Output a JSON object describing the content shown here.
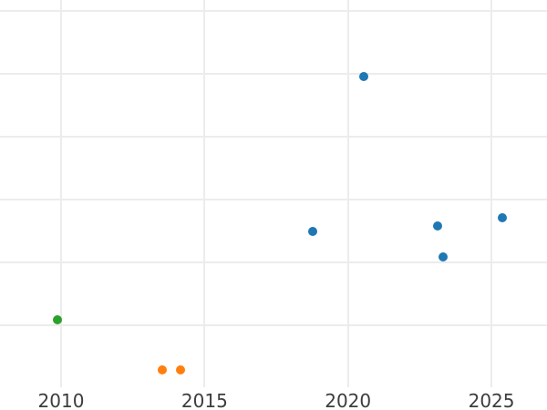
{
  "chart_data": {
    "type": "scatter",
    "title": "",
    "xlabel": "",
    "ylabel": "",
    "grid": true,
    "legend": false,
    "y_axis_labels_visible": false,
    "x_ticks": [
      {
        "value": 2010,
        "label": "2010"
      },
      {
        "value": 2015,
        "label": "2015"
      },
      {
        "value": 2020,
        "label": "2020"
      },
      {
        "value": 2025,
        "label": "2025"
      }
    ],
    "y_gridline_units": [
      0,
      1,
      2,
      3,
      4,
      5
    ],
    "series": [
      {
        "name": "blue-series",
        "color": "#1f77b4",
        "points": [
          {
            "x": 2018.78,
            "y": 1.5
          },
          {
            "x": 2020.55,
            "y": 3.95
          },
          {
            "x": 2023.11,
            "y": 1.58
          },
          {
            "x": 2023.31,
            "y": 1.09
          },
          {
            "x": 2025.38,
            "y": 1.71
          }
        ]
      },
      {
        "name": "orange-series",
        "color": "#ff7f0e",
        "points": [
          {
            "x": 2013.53,
            "y": -0.71
          },
          {
            "x": 2014.16,
            "y": -0.71
          }
        ]
      },
      {
        "name": "green-series",
        "color": "#2ca02c",
        "points": [
          {
            "x": 2009.86,
            "y": 0.09
          }
        ]
      }
    ]
  },
  "style": {
    "background": "#ffffff",
    "grid_color": "#ececec",
    "tick_label_color": "#3d3d3d"
  }
}
